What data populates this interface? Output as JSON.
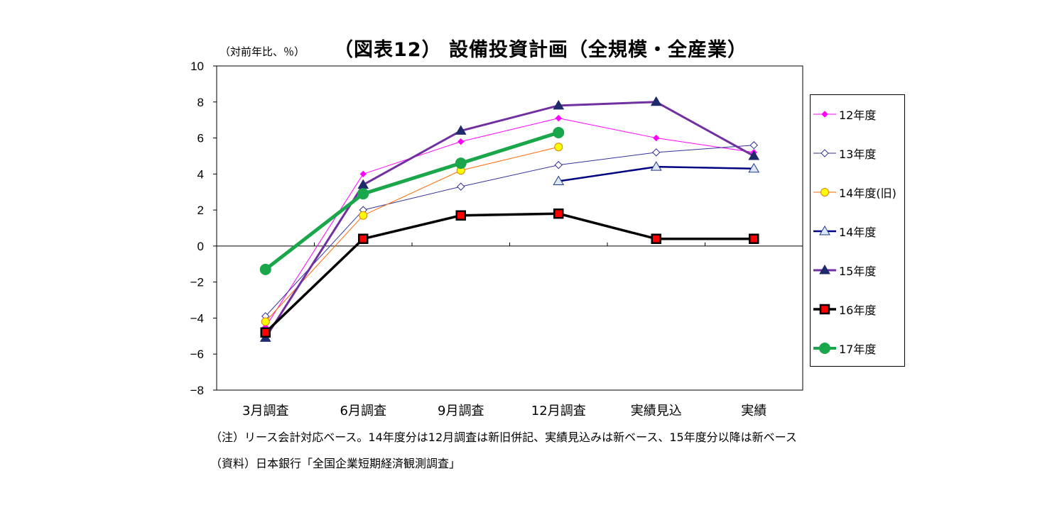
{
  "title": "（図表12）  設備投資計画（全規模・全産業）",
  "unit": "（対前年比、％）",
  "notes": {
    "note1": "（注）リース会計対応ベース。14年度分は12月調査は新旧併記、実績見込みは新ベース、15年度分以降は新ベース",
    "source": "（資料）日本銀行「全国企業短期経済観測調査」"
  },
  "chart_data": {
    "type": "line",
    "title": "（図表12）  設備投資計画（全規模・全産業）",
    "ylabel": "（対前年比、％）",
    "categories": [
      "3月調査",
      "6月調査",
      "9月調査",
      "12月調査",
      "実績見込",
      "実績"
    ],
    "ylim": [
      -8,
      10
    ],
    "yticks": [
      10,
      8,
      6,
      4,
      2,
      0,
      -2,
      -4,
      -6,
      -8
    ],
    "ytick_labels": [
      "10",
      "8",
      "6",
      "4",
      "2",
      "0",
      "−2",
      "−4",
      "−6",
      "−8"
    ],
    "legend_position": "right",
    "series": [
      {
        "name": "12年度",
        "color": "#ff00ff",
        "marker": "diamond-filled",
        "width": 1,
        "values": [
          -4.5,
          4.0,
          5.8,
          7.1,
          6.0,
          5.2
        ]
      },
      {
        "name": "13年度",
        "color": "#333399",
        "marker": "diamond-open",
        "width": 1,
        "values": [
          -3.9,
          2.0,
          3.3,
          4.5,
          5.2,
          5.6
        ]
      },
      {
        "name": "14年度(旧)",
        "color": "#ff6600",
        "marker": "circle-yellow",
        "width": 1,
        "values": [
          -4.2,
          1.7,
          4.2,
          5.5,
          null,
          null
        ]
      },
      {
        "name": "14年度",
        "color": "#000080",
        "marker": "triangle-open",
        "width": 2.5,
        "values": [
          null,
          null,
          null,
          3.6,
          4.4,
          4.3
        ]
      },
      {
        "name": "15年度",
        "color": "#7030a0",
        "marker": "triangle-filled",
        "width": 3,
        "values": [
          -5.1,
          3.4,
          6.4,
          7.8,
          8.0,
          5.0
        ]
      },
      {
        "name": "16年度",
        "color": "#000000",
        "marker": "square-red",
        "width": 3.5,
        "values": [
          -4.8,
          0.4,
          1.7,
          1.8,
          0.4,
          0.4
        ]
      },
      {
        "name": "17年度",
        "color": "#1aa64a",
        "marker": "circle-green",
        "width": 5,
        "values": [
          -1.3,
          2.9,
          4.6,
          6.3,
          null,
          null
        ]
      }
    ]
  }
}
